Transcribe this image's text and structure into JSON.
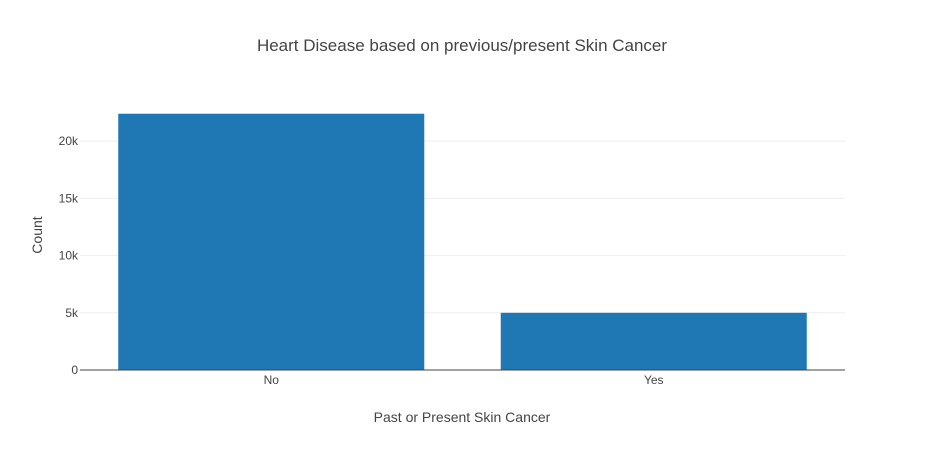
{
  "chart_data": {
    "type": "bar",
    "title": "Heart Disease based on previous/present Skin Cancer",
    "xlabel": "Past or Present Skin Cancer",
    "ylabel": "Count",
    "categories": [
      "No",
      "Yes"
    ],
    "values": [
      22400,
      5000
    ],
    "ylim": [
      0,
      23600
    ],
    "yticks": [
      0,
      5000,
      10000,
      15000,
      20000
    ],
    "ytick_labels": [
      "0",
      "5k",
      "10k",
      "15k",
      "20k"
    ],
    "grid": true,
    "bar_color": "#1f77b4",
    "legend": false
  }
}
